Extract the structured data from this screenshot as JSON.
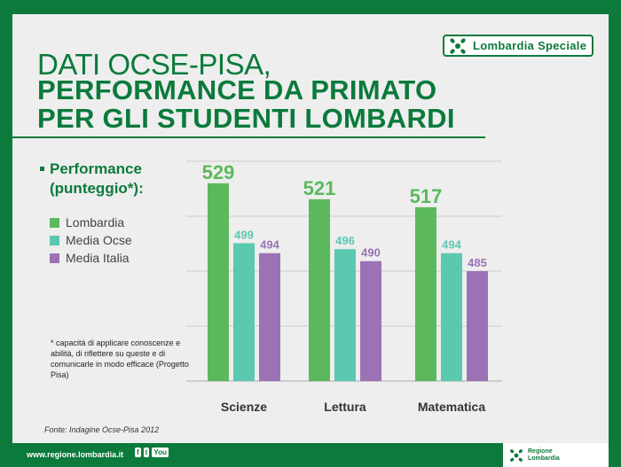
{
  "badge": {
    "label": "Lombardia Speciale"
  },
  "title": {
    "line1": "DATI OCSE-PISA,",
    "line2": "PERFORMANCE DA PRIMATO",
    "line3": "PER GLI STUDENTI LOMBARDI"
  },
  "legend": {
    "heading_line1": "Performance",
    "heading_line2": "(punteggio*):",
    "items": [
      {
        "label": "Lombardia",
        "color": "#5cb85c"
      },
      {
        "label": "Media Ocse",
        "color": "#5bc8b0"
      },
      {
        "label": "Media Italia",
        "color": "#9b72b4"
      }
    ]
  },
  "footnote": "* capacità di applicare conoscenze e abilità, di riflettere su queste e di comunicarle in modo efficace (Progetto Pisa)",
  "source": "Fonte: Indagine Ocse-Pisa 2012",
  "footer": {
    "url": "www.regione.lombardia.it",
    "social": [
      "f",
      "t",
      "You"
    ],
    "logo_text_line1": "Regione",
    "logo_text_line2": "Lombardia"
  },
  "chart_data": {
    "type": "bar",
    "categories": [
      "Scienze",
      "Lettura",
      "Matematica"
    ],
    "series": [
      {
        "name": "Lombardia",
        "values": [
          529,
          521,
          517
        ],
        "color": "#5cb85c",
        "label_color": "#5cb85c"
      },
      {
        "name": "Media Ocse",
        "values": [
          499,
          496,
          494
        ],
        "color": "#5bc8b0",
        "label_color": "#5bc8b0"
      },
      {
        "name": "Media Italia",
        "values": [
          494,
          490,
          485
        ],
        "color": "#9b72b4",
        "label_color": "#9b72b4"
      }
    ],
    "ylim": [
      430,
      540
    ],
    "grid": true,
    "legend_position": "left"
  }
}
